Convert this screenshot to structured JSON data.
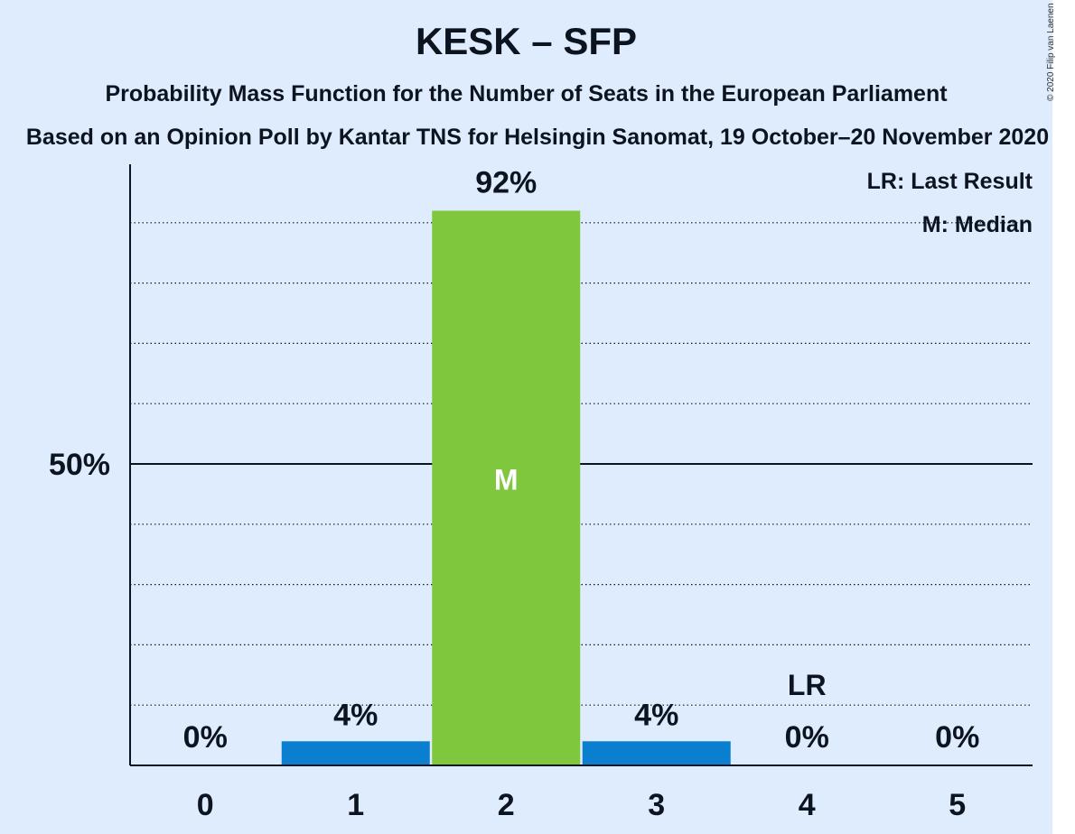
{
  "chart_data": {
    "type": "bar",
    "title": "KESK – SFP",
    "subtitle": "Probability Mass Function for the Number of Seats in the European Parliament",
    "source": "Based on an Opinion Poll by Kantar TNS for Helsingin Sanomat, 19 October–20 November 2020",
    "copyright": "© 2020 Filip van Laenen",
    "categories": [
      "0",
      "1",
      "2",
      "3",
      "4",
      "5"
    ],
    "values": [
      0,
      4,
      92,
      4,
      0,
      0
    ],
    "value_labels": [
      "0%",
      "4%",
      "92%",
      "4%",
      "0%",
      "0%"
    ],
    "ylim": [
      0,
      100
    ],
    "y_ticks": [
      {
        "value": 50,
        "label": "50%"
      }
    ],
    "gridlines_minor": [
      10,
      20,
      30,
      40,
      60,
      70,
      80,
      90
    ],
    "median_index": 2,
    "median_marker": "M",
    "last_result_index": 4,
    "last_result_marker": "LR",
    "legend": {
      "placement": "top-right",
      "entries": [
        "LR: Last Result",
        "M: Median"
      ]
    },
    "colors": {
      "bar": "#0a7fd0",
      "median_bar": "#7fc83e",
      "background": "#dfecfd",
      "text": "#0c1420"
    }
  }
}
